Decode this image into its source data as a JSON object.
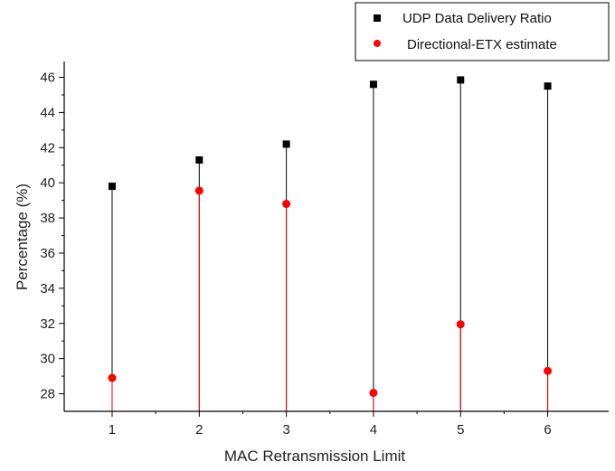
{
  "chart_data": {
    "type": "scatter",
    "title": "",
    "xlabel": "MAC Retransmission Limit",
    "ylabel": "Percentage (%)",
    "x": [
      1,
      2,
      3,
      4,
      5,
      6
    ],
    "xlim": [
      0.45,
      6.7
    ],
    "ylim": [
      27,
      46.9
    ],
    "xticks": [
      "1",
      "2",
      "3",
      "4",
      "5",
      "6"
    ],
    "yticks": [
      "28",
      "30",
      "32",
      "34",
      "36",
      "38",
      "40",
      "42",
      "44",
      "46"
    ],
    "grid": false,
    "legend_position": "top-right",
    "series": [
      {
        "name": "UDP Data Delivery Ratio",
        "marker": "square",
        "color": "#000000",
        "stem_color": "#000000",
        "values": [
          39.8,
          41.3,
          42.2,
          45.6,
          45.85,
          45.5
        ]
      },
      {
        "name": "Directional-ETX estimate",
        "marker": "circle",
        "color": "#ff0000",
        "stem_color": "#ff0000",
        "values": [
          28.9,
          39.55,
          38.8,
          28.05,
          31.95,
          29.3
        ]
      }
    ]
  }
}
